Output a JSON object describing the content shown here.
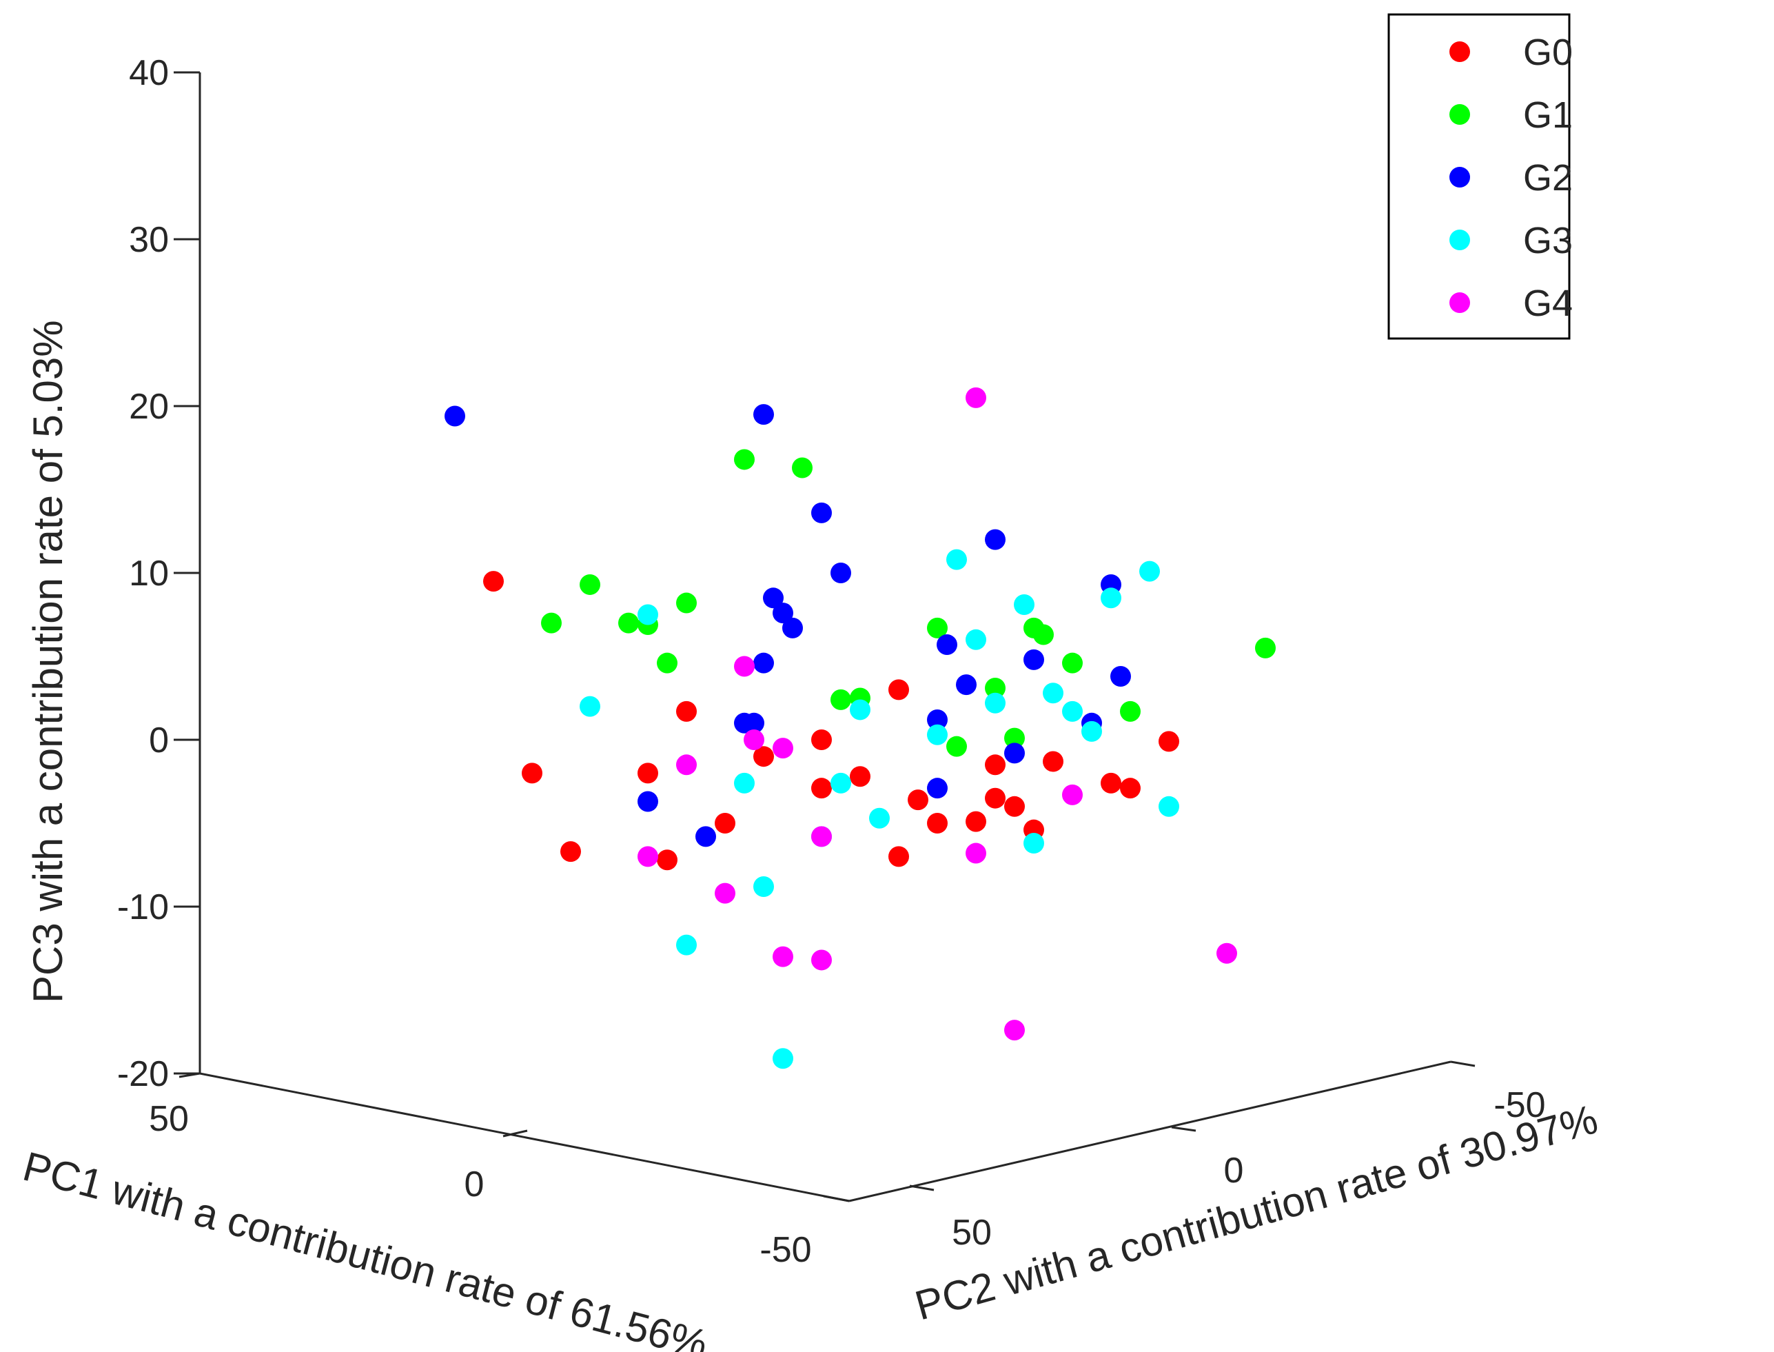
{
  "chart_data": {
    "type": "scatter3d",
    "title": "",
    "xlabel": "PC1 with a contribution rate of 61.56%",
    "ylabel": "PC2 with a contribution rate of 30.97%",
    "zlabel": "PC3 with a contribution rate of 5.03%",
    "x_ticks": [
      "50",
      "0",
      "-50"
    ],
    "y_ticks": [
      "-50",
      "0",
      "50"
    ],
    "z_ticks": [
      "40",
      "30",
      "20",
      "10",
      "0",
      "-10",
      "-20"
    ],
    "zlim": [
      -20,
      40
    ],
    "legend_position": "top-right",
    "series": [
      {
        "name": "G0",
        "color": "#ff0000",
        "points": [
          [
            -18.0,
            9.5
          ],
          [
            -8.0,
            1.7
          ],
          [
            -16.0,
            -2.0
          ],
          [
            -10.0,
            -2.0
          ],
          [
            -14.0,
            -6.7
          ],
          [
            -9.0,
            -7.2
          ],
          [
            -6.0,
            -5.0
          ],
          [
            -4.0,
            -1.0
          ],
          [
            -1.0,
            0.0
          ],
          [
            -1.0,
            -2.9
          ],
          [
            1.0,
            -2.2
          ],
          [
            3.0,
            3.0
          ],
          [
            4.0,
            -3.6
          ],
          [
            5.0,
            -5.0
          ],
          [
            3.0,
            -7.0
          ],
          [
            7.0,
            -4.9
          ],
          [
            8.0,
            -1.5
          ],
          [
            8.0,
            -3.5
          ],
          [
            9.0,
            -4.0
          ],
          [
            10.0,
            -5.4
          ],
          [
            11.0,
            -1.3
          ],
          [
            14.0,
            -2.6
          ],
          [
            15.0,
            -2.9
          ],
          [
            17.0,
            -0.1
          ]
        ]
      },
      {
        "name": "G1",
        "color": "#00ff00",
        "points": [
          [
            -15.0,
            7.0
          ],
          [
            -13.0,
            9.3
          ],
          [
            -11.0,
            7.0
          ],
          [
            -10.0,
            6.9
          ],
          [
            -9.0,
            4.6
          ],
          [
            -8.0,
            8.2
          ],
          [
            -5.0,
            16.8
          ],
          [
            -2.0,
            16.3
          ],
          [
            0.0,
            2.4
          ],
          [
            1.0,
            2.5
          ],
          [
            5.0,
            6.7
          ],
          [
            6.0,
            -0.4
          ],
          [
            8.0,
            3.1
          ],
          [
            9.0,
            0.1
          ],
          [
            10.0,
            6.7
          ],
          [
            10.5,
            6.3
          ],
          [
            12.0,
            4.6
          ],
          [
            15.0,
            1.7
          ],
          [
            22.0,
            5.5
          ]
        ]
      },
      {
        "name": "G2",
        "color": "#0000ff",
        "points": [
          [
            -20.0,
            19.4
          ],
          [
            -10.0,
            -3.7
          ],
          [
            -7.0,
            -5.8
          ],
          [
            -5.0,
            1.0
          ],
          [
            -4.5,
            1.0
          ],
          [
            -4.0,
            4.6
          ],
          [
            -3.5,
            8.5
          ],
          [
            -3.0,
            7.6
          ],
          [
            -2.5,
            6.7
          ],
          [
            -4.0,
            19.5
          ],
          [
            -1.0,
            13.6
          ],
          [
            0.0,
            10.0
          ],
          [
            5.0,
            1.2
          ],
          [
            5.0,
            -2.9
          ],
          [
            5.5,
            5.7
          ],
          [
            6.5,
            3.3
          ],
          [
            8.0,
            12.0
          ],
          [
            9.0,
            -0.8
          ],
          [
            10.0,
            4.8
          ],
          [
            13.0,
            1.0
          ],
          [
            14.0,
            9.3
          ],
          [
            14.5,
            3.8
          ]
        ]
      },
      {
        "name": "G3",
        "color": "#00ffff",
        "points": [
          [
            -13.0,
            2.0
          ],
          [
            -10.0,
            7.5
          ],
          [
            -8.0,
            -12.3
          ],
          [
            -5.0,
            -2.6
          ],
          [
            -4.0,
            -8.8
          ],
          [
            -3.0,
            -19.1
          ],
          [
            0.0,
            -2.6
          ],
          [
            -1.0,
            -5.8
          ],
          [
            1.0,
            1.8
          ],
          [
            2.0,
            -4.7
          ],
          [
            5.0,
            0.3
          ],
          [
            6.0,
            10.8
          ],
          [
            7.0,
            6.0
          ],
          [
            8.0,
            2.2
          ],
          [
            9.5,
            8.1
          ],
          [
            10.0,
            -6.2
          ],
          [
            11.0,
            2.8
          ],
          [
            12.0,
            1.7
          ],
          [
            13.0,
            0.5
          ],
          [
            14.0,
            8.5
          ],
          [
            16.0,
            10.1
          ],
          [
            17.0,
            -4.0
          ]
        ]
      },
      {
        "name": "G4",
        "color": "#ff00ff",
        "points": [
          [
            -10.0,
            -7.0
          ],
          [
            -8.0,
            -1.5
          ],
          [
            -6.0,
            -9.2
          ],
          [
            -5.0,
            4.4
          ],
          [
            -4.5,
            0.0
          ],
          [
            -3.0,
            -0.5
          ],
          [
            -3.0,
            -13.0
          ],
          [
            -1.0,
            -5.8
          ],
          [
            -1.0,
            -13.2
          ],
          [
            7.0,
            20.5
          ],
          [
            7.0,
            -6.8
          ],
          [
            9.0,
            -17.4
          ],
          [
            12.0,
            -3.3
          ],
          [
            20.0,
            -12.8
          ]
        ]
      }
    ]
  }
}
